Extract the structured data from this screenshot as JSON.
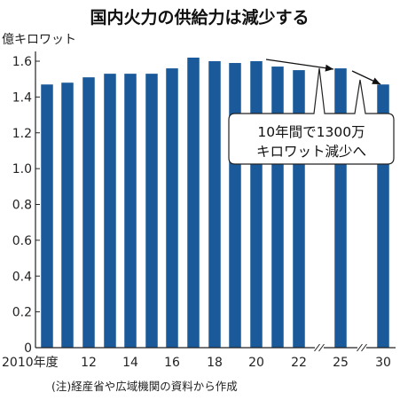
{
  "chart_data": {
    "type": "bar",
    "title": "国内火力の供給力は減少する",
    "ylabel": "億キロワット",
    "ylim": [
      0,
      1.7
    ],
    "yticks": [
      "0",
      "0.2",
      "0.4",
      "0.6",
      "0.8",
      "1.0",
      "1.2",
      "1.4",
      "1.6"
    ],
    "grid": false,
    "categories": [
      "2010",
      "2011",
      "2012",
      "2013",
      "2014",
      "2015",
      "2016",
      "2017",
      "2018",
      "2019",
      "2020",
      "2021",
      "2022",
      "2025",
      "2030"
    ],
    "values": [
      1.47,
      1.48,
      1.51,
      1.53,
      1.53,
      1.53,
      1.56,
      1.62,
      1.6,
      1.59,
      1.6,
      1.57,
      1.55,
      1.56,
      1.47
    ],
    "xtick_labels": [
      {
        "label": "2010年度",
        "index": 0
      },
      {
        "label": "12",
        "index": 2
      },
      {
        "label": "14",
        "index": 4
      },
      {
        "label": "16",
        "index": 6
      },
      {
        "label": "18",
        "index": 8
      },
      {
        "label": "20",
        "index": 10
      },
      {
        "label": "22",
        "index": 12
      },
      {
        "label": "25",
        "index": 13
      },
      {
        "label": "30",
        "index": 14
      }
    ],
    "axis_breaks": [
      "2022-2025",
      "2025-2030"
    ],
    "annotation": {
      "line1": "10年間で1300万",
      "line2": "キロワット減少へ"
    },
    "note": "(注)経産省や広域機関の資料から作成",
    "bar_color": "#1a5a9a"
  }
}
